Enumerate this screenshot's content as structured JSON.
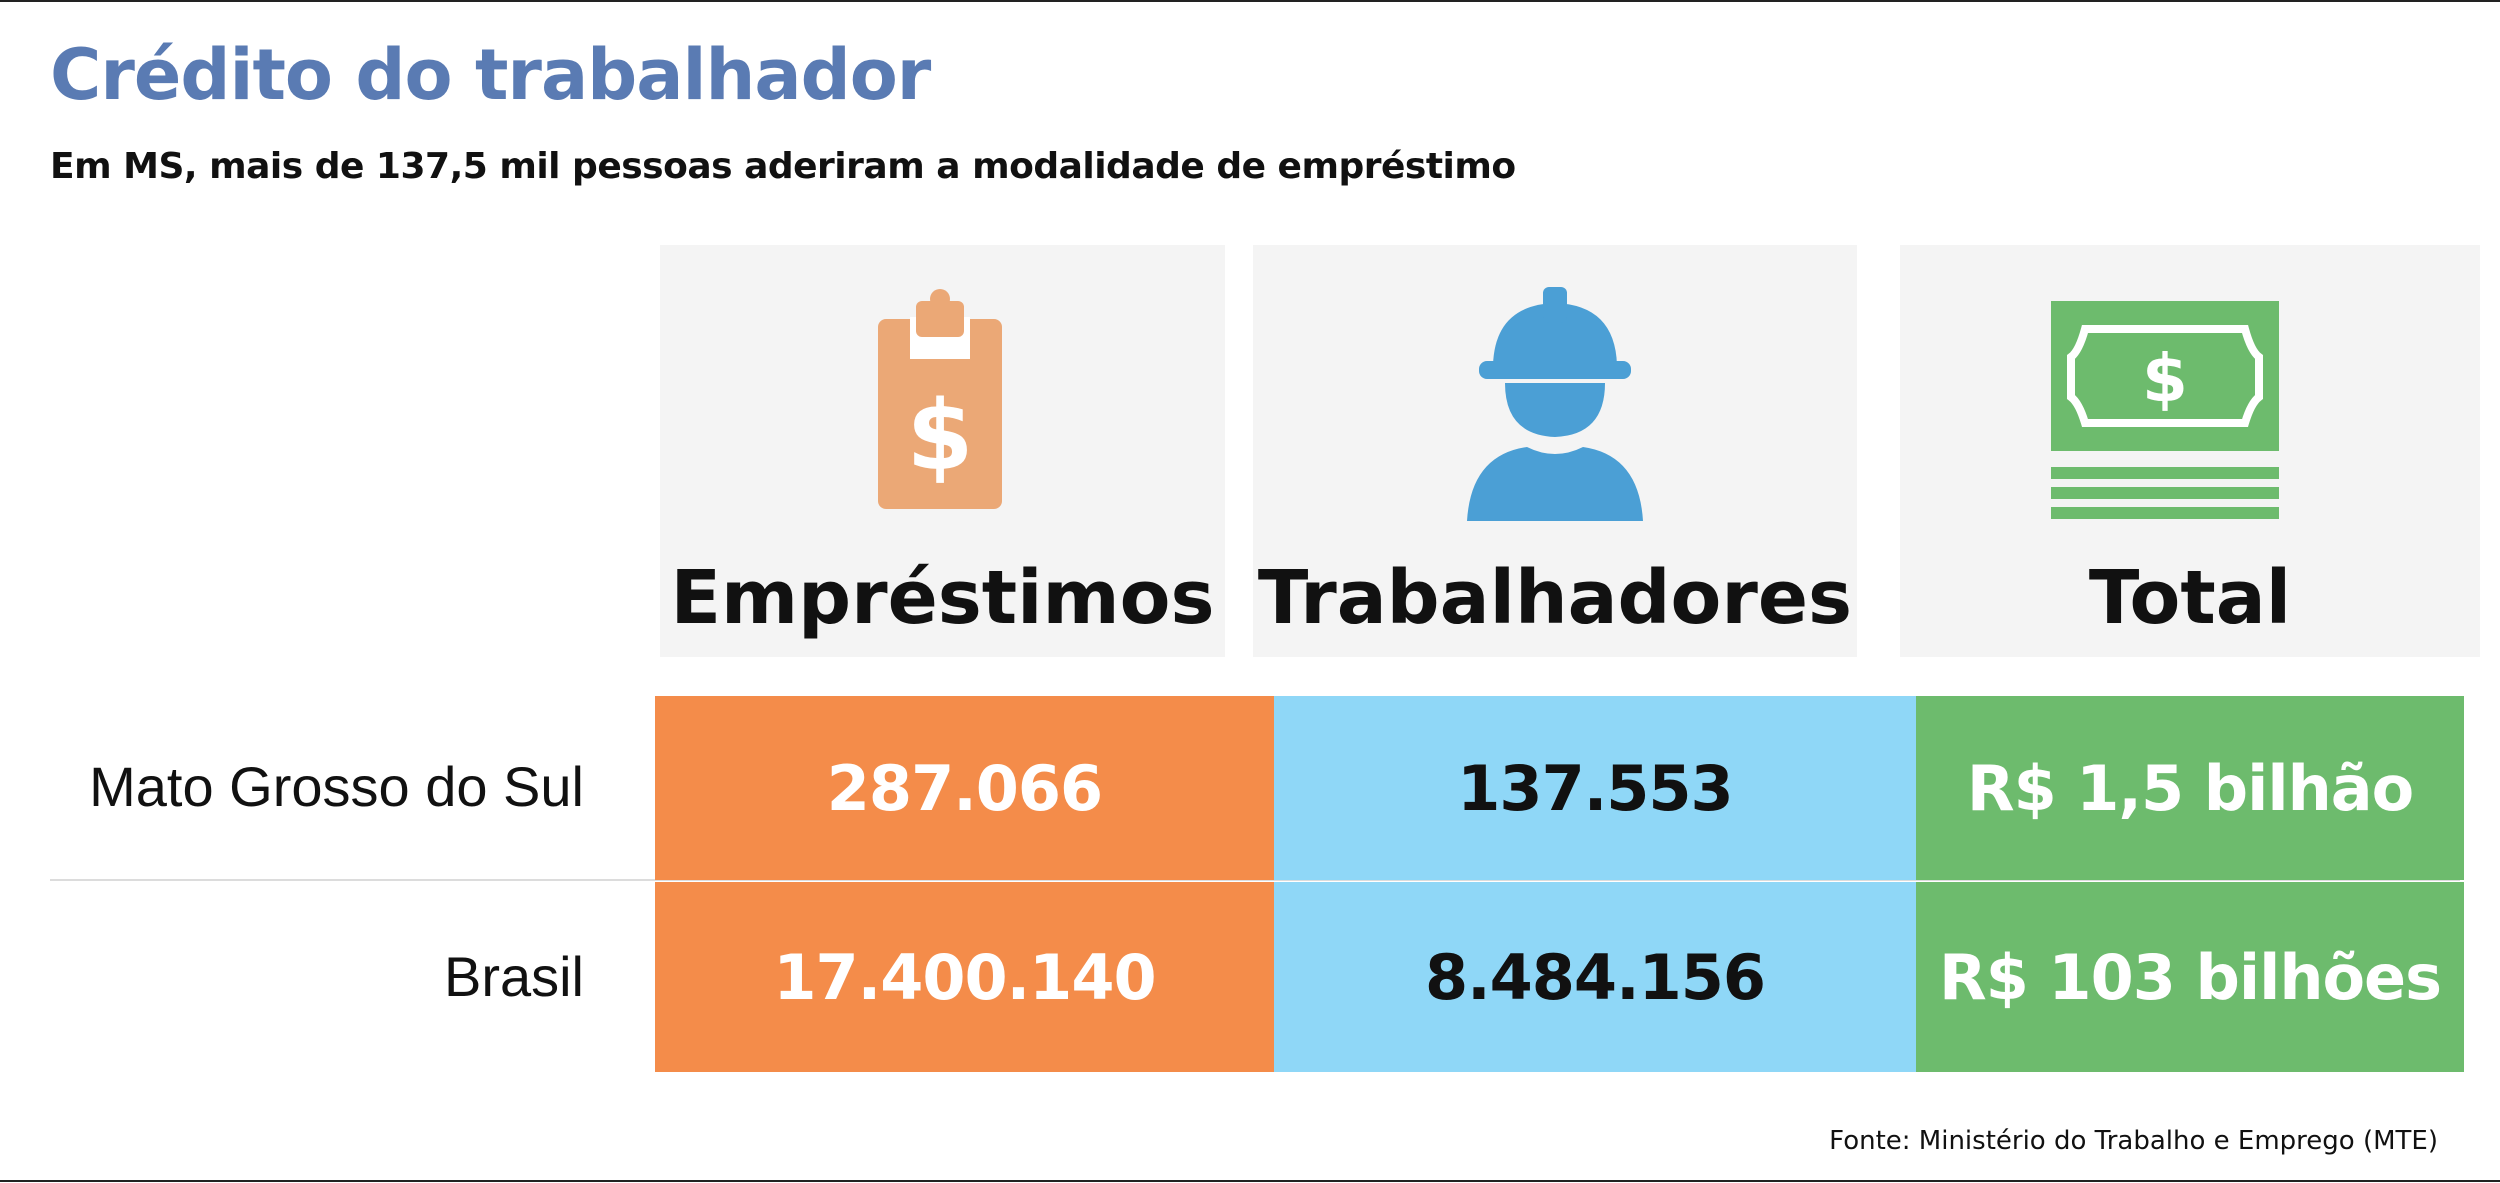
{
  "title": "Crédito do trabalhador",
  "subtitle": "Em MS, mais de 137,5 mil pessoas aderiram a modalidade de empréstimo",
  "icons": [
    {
      "name": "clipboard-dollar-icon",
      "color": "#eba876"
    },
    {
      "name": "worker-helmet-icon",
      "color": "#4b9fd5"
    },
    {
      "name": "banknote-stack-icon",
      "color": "#6dbb6d"
    }
  ],
  "chart_data": {
    "type": "table",
    "columns": [
      "Empréstimos",
      "Trabalhadores",
      "Total"
    ],
    "column_colors": [
      "#f48c4a",
      "#8fd7f7",
      "#6dbb6d"
    ],
    "column_text_colors": [
      "#ffffff",
      "#111111",
      "#ffffff"
    ],
    "rows": [
      {
        "label": "Mato Grosso do Sul",
        "values": [
          "287.066",
          "137.553",
          "R$ 1,5 bilhão"
        ]
      },
      {
        "label": "Brasil",
        "values": [
          "17.400.140",
          "8.484.156",
          "R$ 103 bilhões"
        ]
      }
    ]
  },
  "source": "Fonte: Ministério do Trabalho e Emprego (MTE)"
}
